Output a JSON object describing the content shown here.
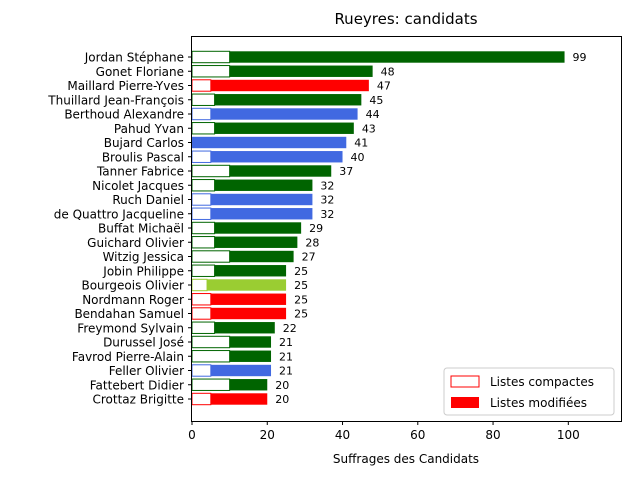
{
  "chart_data": {
    "type": "bar",
    "orientation": "horizontal",
    "title": "Rueyres: candidats",
    "xlabel": "Suffrages des Candidats",
    "ylabel": "",
    "xlim": [
      0,
      114
    ],
    "xticks": [
      0,
      20,
      40,
      60,
      80,
      100
    ],
    "grid": false,
    "legend_placement": "lower-right",
    "legend": [
      {
        "label": "Listes compactes",
        "style": "outline",
        "color": "#ff0000"
      },
      {
        "label": "Listes modifiées",
        "style": "filled",
        "color": "#ff0000"
      }
    ],
    "colors": {
      "green": "#006400",
      "blue": "#4169e1",
      "red": "#ff0000",
      "lightgreen": "#9acd32"
    },
    "candidates": [
      {
        "name": "Jordan Stéphane",
        "total": 99,
        "compact": 10,
        "color": "green"
      },
      {
        "name": "Gonet Floriane",
        "total": 48,
        "compact": 10,
        "color": "green"
      },
      {
        "name": "Maillard Pierre-Yves",
        "total": 47,
        "compact": 5,
        "color": "red"
      },
      {
        "name": "Thuillard Jean-François",
        "total": 45,
        "compact": 6,
        "color": "green"
      },
      {
        "name": "Berthoud Alexandre",
        "total": 44,
        "compact": 5,
        "color": "blue"
      },
      {
        "name": "Pahud Yvan",
        "total": 43,
        "compact": 6,
        "color": "green"
      },
      {
        "name": "Bujard Carlos",
        "total": 41,
        "compact": 0,
        "color": "blue"
      },
      {
        "name": "Broulis Pascal",
        "total": 40,
        "compact": 5,
        "color": "blue"
      },
      {
        "name": "Tanner Fabrice",
        "total": 37,
        "compact": 10,
        "color": "green"
      },
      {
        "name": "Nicolet Jacques",
        "total": 32,
        "compact": 6,
        "color": "green"
      },
      {
        "name": "Ruch Daniel",
        "total": 32,
        "compact": 5,
        "color": "blue"
      },
      {
        "name": "de Quattro Jacqueline",
        "total": 32,
        "compact": 5,
        "color": "blue"
      },
      {
        "name": "Buffat Michaël",
        "total": 29,
        "compact": 6,
        "color": "green"
      },
      {
        "name": "Guichard Olivier",
        "total": 28,
        "compact": 6,
        "color": "green"
      },
      {
        "name": "Witzig Jessica",
        "total": 27,
        "compact": 10,
        "color": "green"
      },
      {
        "name": "Jobin Philippe",
        "total": 25,
        "compact": 6,
        "color": "green"
      },
      {
        "name": "Bourgeois Olivier",
        "total": 25,
        "compact": 4,
        "color": "lightgreen"
      },
      {
        "name": "Nordmann Roger",
        "total": 25,
        "compact": 5,
        "color": "red"
      },
      {
        "name": "Bendahan Samuel",
        "total": 25,
        "compact": 5,
        "color": "red"
      },
      {
        "name": "Freymond Sylvain",
        "total": 22,
        "compact": 6,
        "color": "green"
      },
      {
        "name": "Durussel José",
        "total": 21,
        "compact": 10,
        "color": "green"
      },
      {
        "name": "Favrod Pierre-Alain",
        "total": 21,
        "compact": 10,
        "color": "green"
      },
      {
        "name": "Feller Olivier",
        "total": 21,
        "compact": 5,
        "color": "blue"
      },
      {
        "name": "Fattebert Didier",
        "total": 20,
        "compact": 10,
        "color": "green"
      },
      {
        "name": "Crottaz Brigitte",
        "total": 20,
        "compact": 5,
        "color": "red"
      }
    ]
  }
}
